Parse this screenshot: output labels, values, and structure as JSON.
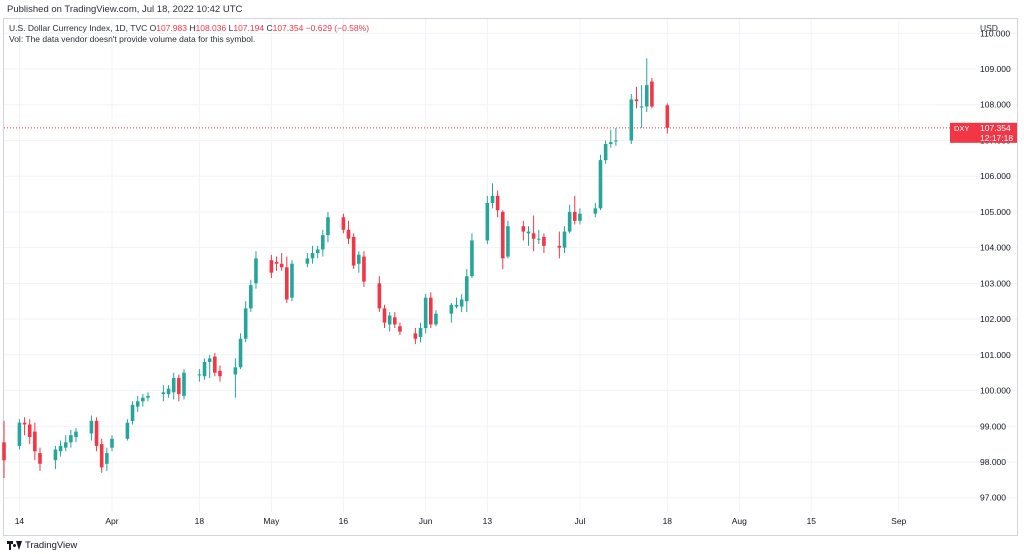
{
  "header": {
    "published": "Published on TradingView.com, Jul 18, 2022 10:42 UTC"
  },
  "legend": {
    "symbol": "U.S. Dollar Currency Index, 1D, TVC",
    "o_label": "O",
    "o_value": "107.983",
    "h_label": "H",
    "h_value": "108.036",
    "l_label": "L",
    "l_value": "107.194",
    "c_label": "C",
    "c_value": "107.354",
    "change": "−0.629 (−0.58%)",
    "volume_note": "Vol: The data vendor doesn't provide volume data for this symbol."
  },
  "price_scale": {
    "currency": "USD"
  },
  "current_price": {
    "ticker": "DXY",
    "price": "107.354",
    "countdown": "12:17:18",
    "value": 107.354
  },
  "footer": {
    "logo_text": "TradingView"
  },
  "colors": {
    "up": "#26a69a",
    "down": "#f23645",
    "grid": "#f0f3fa",
    "text": "#131722",
    "price_line": "#f23645"
  },
  "chart_data": {
    "type": "candlestick",
    "ylim": [
      96.6,
      110.4
    ],
    "xlim": [
      "2022-03-11",
      "2022-09-10"
    ],
    "grid": true,
    "y_ticks": [
      {
        "value": 97,
        "label": "97.000"
      },
      {
        "value": 98,
        "label": "98.000"
      },
      {
        "value": 99,
        "label": "99.000"
      },
      {
        "value": 100,
        "label": "100.000"
      },
      {
        "value": 101,
        "label": "101.000"
      },
      {
        "value": 102,
        "label": "102.000"
      },
      {
        "value": 103,
        "label": "103.000"
      },
      {
        "value": 104,
        "label": "104.000"
      },
      {
        "value": 105,
        "label": "105.000"
      },
      {
        "value": 106,
        "label": "106.000"
      },
      {
        "value": 107,
        "label": "107.000"
      },
      {
        "value": 108,
        "label": "108.000"
      },
      {
        "value": 109,
        "label": "109.000"
      },
      {
        "value": 110,
        "label": "110.000"
      }
    ],
    "x_ticks": [
      {
        "date": "2022-03-14",
        "label": "14"
      },
      {
        "date": "2022-04-01",
        "label": "Apr"
      },
      {
        "date": "2022-04-18",
        "label": "18"
      },
      {
        "date": "2022-05-02",
        "label": "May"
      },
      {
        "date": "2022-05-16",
        "label": "16"
      },
      {
        "date": "2022-06-01",
        "label": "Jun"
      },
      {
        "date": "2022-06-13",
        "label": "13"
      },
      {
        "date": "2022-07-01",
        "label": "Jul"
      },
      {
        "date": "2022-07-18",
        "label": "18"
      },
      {
        "date": "2022-08-01",
        "label": "Aug"
      },
      {
        "date": "2022-08-15",
        "label": "15"
      },
      {
        "date": "2022-09-01",
        "label": "Sep"
      }
    ],
    "candles": [
      {
        "d": "2022-03-11",
        "o": 98.55,
        "h": 99.15,
        "l": 97.55,
        "c": 98.05
      },
      {
        "d": "2022-03-14",
        "o": 98.45,
        "h": 99.2,
        "l": 98.35,
        "c": 99.1
      },
      {
        "d": "2022-03-15",
        "o": 99.1,
        "h": 99.25,
        "l": 98.75,
        "c": 99.05
      },
      {
        "d": "2022-03-16",
        "o": 99.05,
        "h": 99.2,
        "l": 98.5,
        "c": 98.7
      },
      {
        "d": "2022-03-17",
        "o": 98.85,
        "h": 99.1,
        "l": 98.05,
        "c": 98.3
      },
      {
        "d": "2022-03-18",
        "o": 98.25,
        "h": 98.4,
        "l": 97.75,
        "c": 97.95
      },
      {
        "d": "2022-03-21",
        "o": 98.05,
        "h": 98.45,
        "l": 97.8,
        "c": 98.35
      },
      {
        "d": "2022-03-22",
        "o": 98.3,
        "h": 98.6,
        "l": 98.15,
        "c": 98.45
      },
      {
        "d": "2022-03-23",
        "o": 98.4,
        "h": 98.75,
        "l": 98.3,
        "c": 98.55
      },
      {
        "d": "2022-03-24",
        "o": 98.55,
        "h": 98.9,
        "l": 98.4,
        "c": 98.75
      },
      {
        "d": "2022-03-25",
        "o": 98.7,
        "h": 98.95,
        "l": 98.55,
        "c": 98.85
      },
      {
        "d": "2022-03-28",
        "o": 98.8,
        "h": 99.3,
        "l": 98.6,
        "c": 99.15
      },
      {
        "d": "2022-03-29",
        "o": 99.15,
        "h": 99.25,
        "l": 98.3,
        "c": 98.45
      },
      {
        "d": "2022-03-30",
        "o": 98.5,
        "h": 98.65,
        "l": 97.7,
        "c": 97.85
      },
      {
        "d": "2022-03-31",
        "o": 97.95,
        "h": 98.4,
        "l": 97.75,
        "c": 98.25
      },
      {
        "d": "2022-04-01",
        "o": 98.4,
        "h": 98.75,
        "l": 98.3,
        "c": 98.65
      },
      {
        "d": "2022-04-04",
        "o": 98.65,
        "h": 99.2,
        "l": 98.6,
        "c": 99.1
      },
      {
        "d": "2022-04-05",
        "o": 99.15,
        "h": 99.7,
        "l": 99.05,
        "c": 99.6
      },
      {
        "d": "2022-04-06",
        "o": 99.55,
        "h": 99.85,
        "l": 99.4,
        "c": 99.7
      },
      {
        "d": "2022-04-07",
        "o": 99.7,
        "h": 99.9,
        "l": 99.55,
        "c": 99.8
      },
      {
        "d": "2022-04-08",
        "o": 99.8,
        "h": 99.95,
        "l": 99.7,
        "c": 99.85
      },
      {
        "d": "2022-04-11",
        "o": 99.9,
        "h": 100.15,
        "l": 99.7,
        "c": 99.95
      },
      {
        "d": "2022-04-12",
        "o": 99.9,
        "h": 100.15,
        "l": 99.8,
        "c": 100.05
      },
      {
        "d": "2022-04-13",
        "o": 99.95,
        "h": 100.5,
        "l": 99.75,
        "c": 100.35
      },
      {
        "d": "2022-04-14",
        "o": 100.35,
        "h": 100.45,
        "l": 99.7,
        "c": 99.9
      },
      {
        "d": "2022-04-15",
        "o": 99.85,
        "h": 100.6,
        "l": 99.75,
        "c": 100.5
      },
      {
        "d": "2022-04-18",
        "o": 100.45,
        "h": 100.6,
        "l": 100.25,
        "c": 100.45
      },
      {
        "d": "2022-04-19",
        "o": 100.4,
        "h": 100.9,
        "l": 100.3,
        "c": 100.8
      },
      {
        "d": "2022-04-20",
        "o": 100.8,
        "h": 101.0,
        "l": 100.35,
        "c": 100.9
      },
      {
        "d": "2022-04-21",
        "o": 100.95,
        "h": 101.05,
        "l": 100.4,
        "c": 100.5
      },
      {
        "d": "2022-04-22",
        "o": 100.55,
        "h": 100.7,
        "l": 100.25,
        "c": 100.4
      },
      {
        "d": "2022-04-25",
        "o": 100.45,
        "h": 100.9,
        "l": 99.8,
        "c": 100.65
      },
      {
        "d": "2022-04-26",
        "o": 100.65,
        "h": 101.6,
        "l": 100.6,
        "c": 101.45
      },
      {
        "d": "2022-04-27",
        "o": 101.45,
        "h": 102.5,
        "l": 101.35,
        "c": 102.3
      },
      {
        "d": "2022-04-28",
        "o": 102.3,
        "h": 103.1,
        "l": 102.2,
        "c": 102.95
      },
      {
        "d": "2022-04-29",
        "o": 103.0,
        "h": 103.9,
        "l": 102.85,
        "c": 103.7
      },
      {
        "d": "2022-05-02",
        "o": 103.65,
        "h": 103.8,
        "l": 103.15,
        "c": 103.3
      },
      {
        "d": "2022-05-03",
        "o": 103.6,
        "h": 103.75,
        "l": 103.35,
        "c": 103.55
      },
      {
        "d": "2022-05-04",
        "o": 103.55,
        "h": 103.85,
        "l": 103.35,
        "c": 103.45
      },
      {
        "d": "2022-05-05",
        "o": 103.45,
        "h": 103.75,
        "l": 102.45,
        "c": 102.55
      },
      {
        "d": "2022-05-06",
        "o": 102.6,
        "h": 103.65,
        "l": 102.5,
        "c": 103.55
      },
      {
        "d": "2022-05-09",
        "o": 103.55,
        "h": 103.85,
        "l": 103.45,
        "c": 103.7
      },
      {
        "d": "2022-05-10",
        "o": 103.7,
        "h": 104.05,
        "l": 103.55,
        "c": 103.85
      },
      {
        "d": "2022-05-11",
        "o": 103.85,
        "h": 104.05,
        "l": 103.7,
        "c": 103.95
      },
      {
        "d": "2022-05-12",
        "o": 103.95,
        "h": 104.5,
        "l": 103.75,
        "c": 104.35
      },
      {
        "d": "2022-05-13",
        "o": 104.35,
        "h": 105.0,
        "l": 104.15,
        "c": 104.85
      },
      {
        "d": "2022-05-16",
        "o": 104.85,
        "h": 104.95,
        "l": 104.4,
        "c": 104.5
      },
      {
        "d": "2022-05-17",
        "o": 104.5,
        "h": 104.75,
        "l": 104.1,
        "c": 104.25
      },
      {
        "d": "2022-05-18",
        "o": 104.3,
        "h": 104.4,
        "l": 103.4,
        "c": 103.5
      },
      {
        "d": "2022-05-19",
        "o": 103.55,
        "h": 103.9,
        "l": 103.3,
        "c": 103.8
      },
      {
        "d": "2022-05-20",
        "o": 103.75,
        "h": 103.9,
        "l": 102.9,
        "c": 103.05
      },
      {
        "d": "2022-05-23",
        "o": 103.0,
        "h": 103.2,
        "l": 102.2,
        "c": 102.3
      },
      {
        "d": "2022-05-24",
        "o": 102.3,
        "h": 102.4,
        "l": 101.75,
        "c": 101.9
      },
      {
        "d": "2022-05-25",
        "o": 101.85,
        "h": 102.2,
        "l": 101.65,
        "c": 102.1
      },
      {
        "d": "2022-05-26",
        "o": 102.05,
        "h": 102.2,
        "l": 101.75,
        "c": 101.85
      },
      {
        "d": "2022-05-27",
        "o": 101.8,
        "h": 101.9,
        "l": 101.55,
        "c": 101.65
      },
      {
        "d": "2022-05-30",
        "o": 101.6,
        "h": 101.75,
        "l": 101.3,
        "c": 101.45
      },
      {
        "d": "2022-05-31",
        "o": 101.5,
        "h": 101.9,
        "l": 101.35,
        "c": 101.75
      },
      {
        "d": "2022-06-01",
        "o": 101.75,
        "h": 102.7,
        "l": 101.6,
        "c": 102.6
      },
      {
        "d": "2022-06-02",
        "o": 102.6,
        "h": 102.75,
        "l": 101.75,
        "c": 101.85
      },
      {
        "d": "2022-06-03",
        "o": 101.85,
        "h": 102.25,
        "l": 101.8,
        "c": 102.15
      },
      {
        "d": "2022-06-06",
        "o": 102.15,
        "h": 102.45,
        "l": 101.9,
        "c": 102.4
      },
      {
        "d": "2022-06-07",
        "o": 102.35,
        "h": 102.6,
        "l": 102.3,
        "c": 102.4
      },
      {
        "d": "2022-06-08",
        "o": 102.35,
        "h": 102.7,
        "l": 102.2,
        "c": 102.55
      },
      {
        "d": "2022-06-09",
        "o": 102.5,
        "h": 103.4,
        "l": 102.2,
        "c": 103.2
      },
      {
        "d": "2022-06-10",
        "o": 103.2,
        "h": 104.4,
        "l": 103.15,
        "c": 104.2
      },
      {
        "d": "2022-06-13",
        "o": 104.2,
        "h": 105.45,
        "l": 104.1,
        "c": 105.25
      },
      {
        "d": "2022-06-14",
        "o": 105.25,
        "h": 105.8,
        "l": 105.1,
        "c": 105.45
      },
      {
        "d": "2022-06-15",
        "o": 105.45,
        "h": 105.6,
        "l": 104.85,
        "c": 105.05
      },
      {
        "d": "2022-06-16",
        "o": 105.0,
        "h": 105.05,
        "l": 103.4,
        "c": 103.7
      },
      {
        "d": "2022-06-17",
        "o": 103.75,
        "h": 104.75,
        "l": 103.7,
        "c": 104.6
      },
      {
        "d": "2022-06-20",
        "o": 104.6,
        "h": 104.75,
        "l": 104.2,
        "c": 104.45
      },
      {
        "d": "2022-06-21",
        "o": 104.4,
        "h": 104.6,
        "l": 104.05,
        "c": 104.45
      },
      {
        "d": "2022-06-22",
        "o": 104.4,
        "h": 104.9,
        "l": 103.9,
        "c": 104.25
      },
      {
        "d": "2022-06-23",
        "o": 104.25,
        "h": 104.5,
        "l": 104.1,
        "c": 104.25
      },
      {
        "d": "2022-06-24",
        "o": 104.3,
        "h": 104.4,
        "l": 103.85,
        "c": 104.05
      },
      {
        "d": "2022-06-27",
        "o": 104.05,
        "h": 104.45,
        "l": 103.7,
        "c": 104.0
      },
      {
        "d": "2022-06-28",
        "o": 104.0,
        "h": 104.6,
        "l": 103.85,
        "c": 104.45
      },
      {
        "d": "2022-06-29",
        "o": 104.45,
        "h": 105.2,
        "l": 104.4,
        "c": 105.0
      },
      {
        "d": "2022-06-30",
        "o": 105.0,
        "h": 105.45,
        "l": 104.65,
        "c": 104.75
      },
      {
        "d": "2022-07-01",
        "o": 104.75,
        "h": 105.1,
        "l": 104.65,
        "c": 104.95
      },
      {
        "d": "2022-07-04",
        "o": 104.95,
        "h": 105.25,
        "l": 104.85,
        "c": 105.1
      },
      {
        "d": "2022-07-05",
        "o": 105.1,
        "h": 106.6,
        "l": 105.05,
        "c": 106.45
      },
      {
        "d": "2022-07-06",
        "o": 106.45,
        "h": 107.0,
        "l": 106.35,
        "c": 106.9
      },
      {
        "d": "2022-07-07",
        "o": 106.9,
        "h": 107.3,
        "l": 106.8,
        "c": 106.95
      },
      {
        "d": "2022-07-08",
        "o": 107.0,
        "h": 107.35,
        "l": 106.85,
        "c": 107.0
      },
      {
        "d": "2022-07-11",
        "o": 107.0,
        "h": 108.3,
        "l": 106.9,
        "c": 108.15
      },
      {
        "d": "2022-07-12",
        "o": 108.15,
        "h": 108.5,
        "l": 107.9,
        "c": 108.1
      },
      {
        "d": "2022-07-13",
        "o": 107.95,
        "h": 108.55,
        "l": 107.35,
        "c": 107.95
      },
      {
        "d": "2022-07-14",
        "o": 107.95,
        "h": 109.3,
        "l": 107.8,
        "c": 108.55
      },
      {
        "d": "2022-07-15",
        "o": 108.65,
        "h": 108.75,
        "l": 107.9,
        "c": 107.95
      },
      {
        "d": "2022-07-18",
        "o": 107.983,
        "h": 108.036,
        "l": 107.194,
        "c": 107.354
      }
    ]
  }
}
